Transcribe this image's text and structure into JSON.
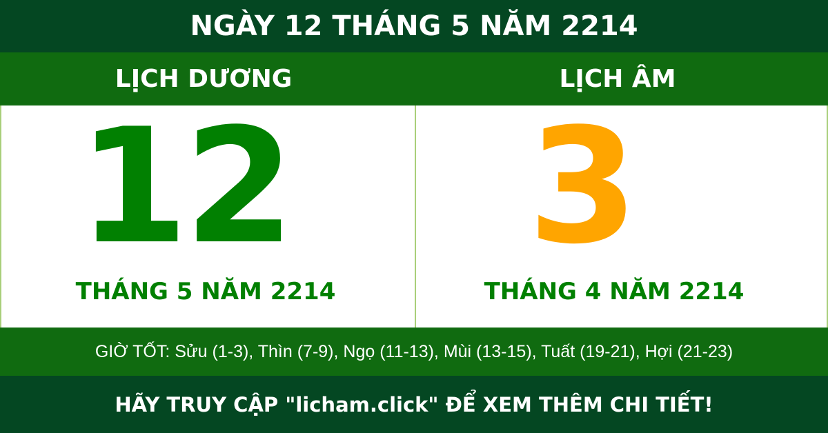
{
  "colors": {
    "dark": "#044722",
    "mid": "#106b10",
    "green": "#018001",
    "orange": "#ffa500"
  },
  "title": "NGÀY 12 THÁNG 5 NĂM 2214",
  "solar": {
    "heading": "LỊCH DƯƠNG",
    "day": "12",
    "month_year": "THÁNG 5 NĂM 2214"
  },
  "lunar": {
    "heading": "LỊCH ÂM",
    "day": "3",
    "month_year": "THÁNG 4 NĂM 2214"
  },
  "good_hours": "GIỜ TỐT: Sửu (1-3), Thìn (7-9), Ngọ (11-13), Mùi (13-15), Tuất (19-21), Hợi (21-23)",
  "footer": "HÃY TRUY CẬP \"licham.click\" ĐỂ XEM THÊM CHI TIẾT!"
}
